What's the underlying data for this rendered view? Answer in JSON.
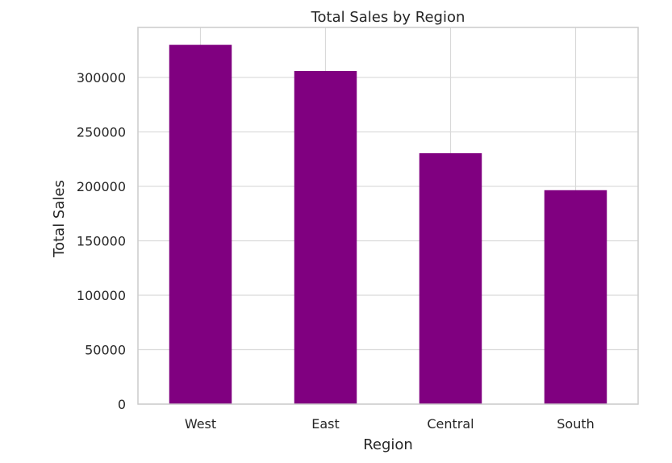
{
  "chart_data": {
    "type": "bar",
    "title": "Total Sales by Region",
    "xlabel": "Region",
    "ylabel": "Total Sales",
    "categories": [
      "West",
      "East",
      "Central",
      "South"
    ],
    "values": [
      330000,
      306000,
      230500,
      196500
    ],
    "ylim": [
      0,
      346000
    ],
    "yticks": [
      0,
      50000,
      100000,
      150000,
      200000,
      250000,
      300000
    ],
    "grid": true,
    "legend": "none",
    "colors": {
      "bar": "#800080",
      "grid": "#d9d9d9",
      "frame": "#cccccc",
      "text": "#262626"
    }
  }
}
